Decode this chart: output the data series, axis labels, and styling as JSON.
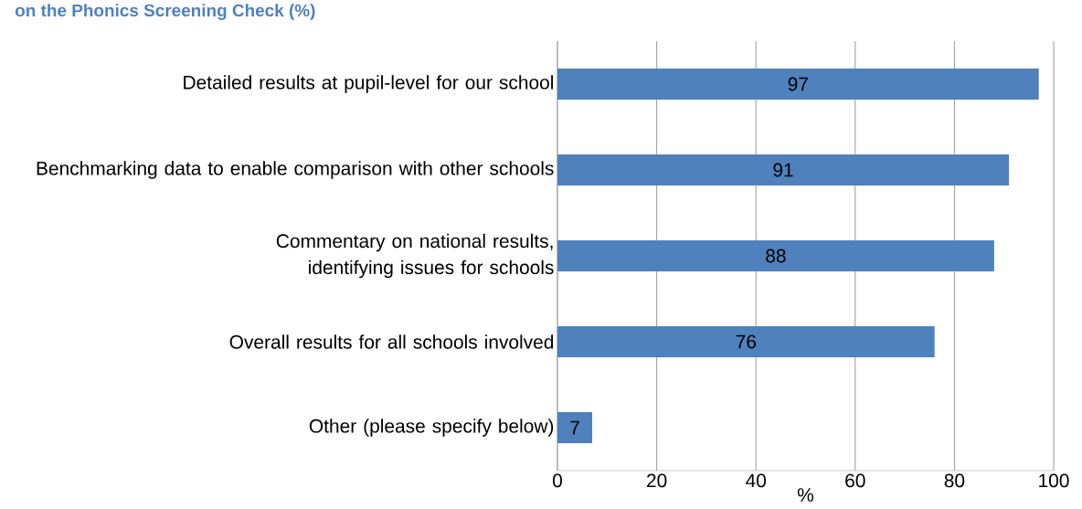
{
  "chart_data": {
    "type": "bar",
    "orientation": "horizontal",
    "title": "on the Phonics Screening Check (%)",
    "xlabel": "%",
    "categories": [
      "Detailed results at pupil-level for our school",
      "Benchmarking data to enable comparison with other schools",
      "Commentary on national results, identifying issues for schools",
      "Overall results for all schools involved",
      "Other (please specify below)"
    ],
    "values": [
      97,
      91,
      88,
      76,
      7
    ],
    "color": "#4f81bd",
    "data_labels": true,
    "xlim": [
      0,
      100
    ],
    "xticks": [
      0,
      20,
      40,
      60,
      80,
      100
    ],
    "grid": "x"
  }
}
